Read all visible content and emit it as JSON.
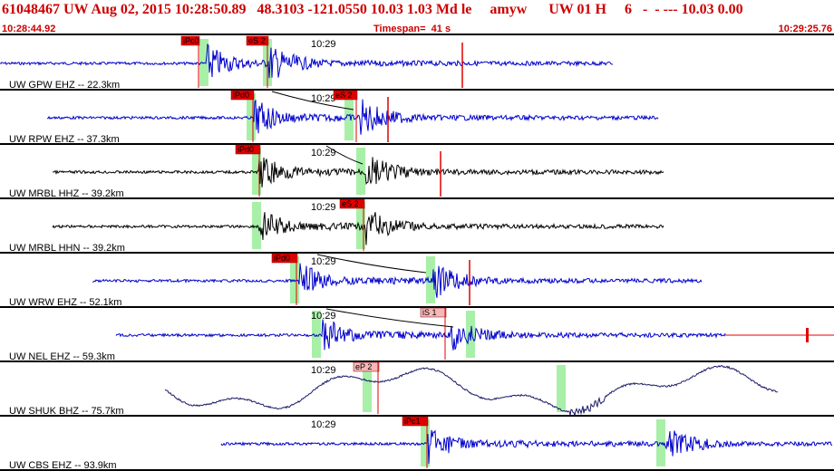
{
  "header": {
    "title": "61048467 UW Aug 02, 2015 10:28:50.89   48.3103 -121.0550 10.03 1.03 Md le     amyw      UW 01 H     6   -  - --- 10.03 0.00",
    "start_time": "10:28:44.92",
    "timespan": "Timespan=  41 s",
    "end_time": "10:29:25.76"
  },
  "tick_label": "10:29",
  "colors": {
    "header_text": "#cc0000",
    "trace_blue": "#0000cc",
    "trace_black": "#000000",
    "pick_red": "#e00000",
    "pick_pink": "#f4b8b8",
    "window_green": "#a8f0a8"
  },
  "traces": [
    {
      "label": "UW GPW EHZ -- 22.3km",
      "color": "blue",
      "picks": [
        "iPc0",
        "eS 2"
      ]
    },
    {
      "label": "UW RPW EHZ -- 37.3km",
      "color": "blue",
      "picks": [
        "iPd0",
        "eS 2"
      ]
    },
    {
      "label": "UW MRBL HHZ -- 39.2km",
      "color": "black",
      "picks": [
        "iPd0"
      ]
    },
    {
      "label": "UW MRBL HHN -- 39.2km",
      "color": "black",
      "picks": [
        "eS 2"
      ]
    },
    {
      "label": "UW WRW EHZ -- 52.1km",
      "color": "blue",
      "picks": [
        "iPd0"
      ]
    },
    {
      "label": "UW NEL EHZ -- 59.3km",
      "color": "blue",
      "picks": [
        "iS 1"
      ]
    },
    {
      "label": "UW SHUK BHZ -- 75.7km",
      "color": "darkblue",
      "picks": [
        "eP 2"
      ]
    },
    {
      "label": "UW CBS EHZ -- 93.9km",
      "color": "blue",
      "picks": [
        "iPc1"
      ]
    }
  ]
}
